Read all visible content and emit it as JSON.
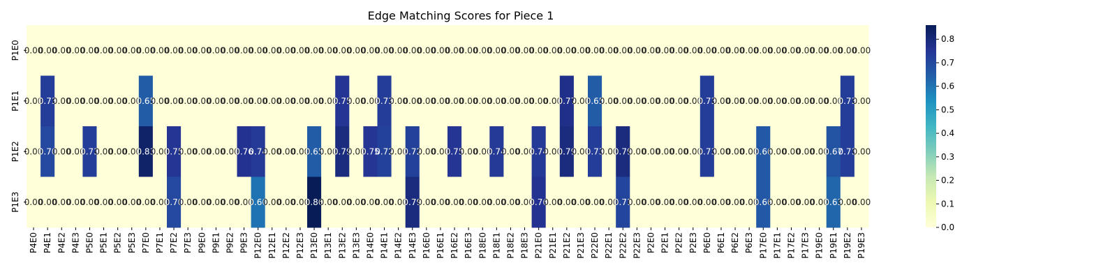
{
  "chart_data": {
    "type": "heatmap",
    "title": "Edge Matching Scores for Piece 1",
    "xlabel": "",
    "ylabel": "",
    "rows": [
      "P1E0",
      "P1E1",
      "P1E2",
      "P1E3"
    ],
    "columns": [
      "P4E0",
      "P4E1",
      "P4E2",
      "P4E3",
      "P5E0",
      "P5E1",
      "P5E2",
      "P5E3",
      "P7E0",
      "P7E1",
      "P7E2",
      "P7E3",
      "P9E0",
      "P9E1",
      "P9E2",
      "P9E3",
      "P12E0",
      "P12E1",
      "P12E2",
      "P12E3",
      "P13E0",
      "P13E1",
      "P13E2",
      "P13E3",
      "P14E0",
      "P14E1",
      "P14E2",
      "P14E3",
      "P16E0",
      "P16E1",
      "P16E2",
      "P16E3",
      "P18E0",
      "P18E1",
      "P18E2",
      "P18E3",
      "P21E0",
      "P21E1",
      "P21E2",
      "P21E3",
      "P22E0",
      "P22E1",
      "P22E2",
      "P22E3",
      "P2E0",
      "P2E1",
      "P2E2",
      "P2E3",
      "P6E0",
      "P6E1",
      "P6E2",
      "P6E3",
      "P17E0",
      "P17E1",
      "P17E2",
      "P17E3",
      "P19E0",
      "P19E1",
      "P19E2",
      "P19E3"
    ],
    "values": [
      [
        0.0,
        0.0,
        0.0,
        0.0,
        0.0,
        0.0,
        0.0,
        0.0,
        0.0,
        0.0,
        0.0,
        0.0,
        0.0,
        0.0,
        0.0,
        0.0,
        0.0,
        0.0,
        0.0,
        0.0,
        0.0,
        0.0,
        0.0,
        0.0,
        0.0,
        0.0,
        0.0,
        0.0,
        0.0,
        0.0,
        0.0,
        0.0,
        0.0,
        0.0,
        0.0,
        0.0,
        0.0,
        0.0,
        0.0,
        0.0,
        0.0,
        0.0,
        0.0,
        0.0,
        0.0,
        0.0,
        0.0,
        0.0,
        0.0,
        0.0,
        0.0,
        0.0,
        0.0,
        0.0,
        0.0,
        0.0,
        0.0,
        0.0,
        0.0,
        0.0
      ],
      [
        0.0,
        0.73,
        0.0,
        0.0,
        0.0,
        0.0,
        0.0,
        0.0,
        0.65,
        0.0,
        0.0,
        0.0,
        0.0,
        0.0,
        0.0,
        0.0,
        0.0,
        0.0,
        0.0,
        0.0,
        0.0,
        0.0,
        0.75,
        0.0,
        0.0,
        0.73,
        0.0,
        0.0,
        0.0,
        0.0,
        0.0,
        0.0,
        0.0,
        0.0,
        0.0,
        0.0,
        0.0,
        0.0,
        0.77,
        0.0,
        0.65,
        0.0,
        0.0,
        0.0,
        0.0,
        0.0,
        0.0,
        0.0,
        0.73,
        0.0,
        0.0,
        0.0,
        0.0,
        0.0,
        0.0,
        0.0,
        0.0,
        0.0,
        0.73,
        0.0
      ],
      [
        0.0,
        0.7,
        0.0,
        0.0,
        0.73,
        0.0,
        0.0,
        0.0,
        0.83,
        0.0,
        0.75,
        0.0,
        0.0,
        0.0,
        0.0,
        0.76,
        0.74,
        0.0,
        0.0,
        0.0,
        0.65,
        0.0,
        0.79,
        0.0,
        0.75,
        0.72,
        0.0,
        0.72,
        0.0,
        0.0,
        0.75,
        0.0,
        0.0,
        0.74,
        0.0,
        0.0,
        0.74,
        0.0,
        0.79,
        0.0,
        0.73,
        0.0,
        0.79,
        0.0,
        0.0,
        0.0,
        0.0,
        0.0,
        0.73,
        0.0,
        0.0,
        0.0,
        0.66,
        0.0,
        0.0,
        0.0,
        0.0,
        0.67,
        0.73,
        0.0
      ],
      [
        0.0,
        0.0,
        0.0,
        0.0,
        0.0,
        0.0,
        0.0,
        0.0,
        0.0,
        0.0,
        0.7,
        0.0,
        0.0,
        0.0,
        0.0,
        0.0,
        0.6,
        0.0,
        0.0,
        0.0,
        0.86,
        0.0,
        0.0,
        0.0,
        0.0,
        0.0,
        0.0,
        0.79,
        0.0,
        0.0,
        0.0,
        0.0,
        0.0,
        0.0,
        0.0,
        0.0,
        0.76,
        0.0,
        0.0,
        0.0,
        0.0,
        0.0,
        0.71,
        0.0,
        0.0,
        0.0,
        0.0,
        0.0,
        0.0,
        0.0,
        0.0,
        0.0,
        0.66,
        0.0,
        0.0,
        0.0,
        0.0,
        0.63,
        0.0,
        0.0
      ]
    ],
    "colormap": "YlGnBu",
    "value_range": [
      0,
      0.86
    ],
    "colorbar_ticks": [
      "0.0",
      "0.1",
      "0.2",
      "0.3",
      "0.4",
      "0.5",
      "0.6",
      "0.7",
      "0.8"
    ],
    "annotation_format": "2 decimals",
    "legend": "colorbar-right"
  }
}
